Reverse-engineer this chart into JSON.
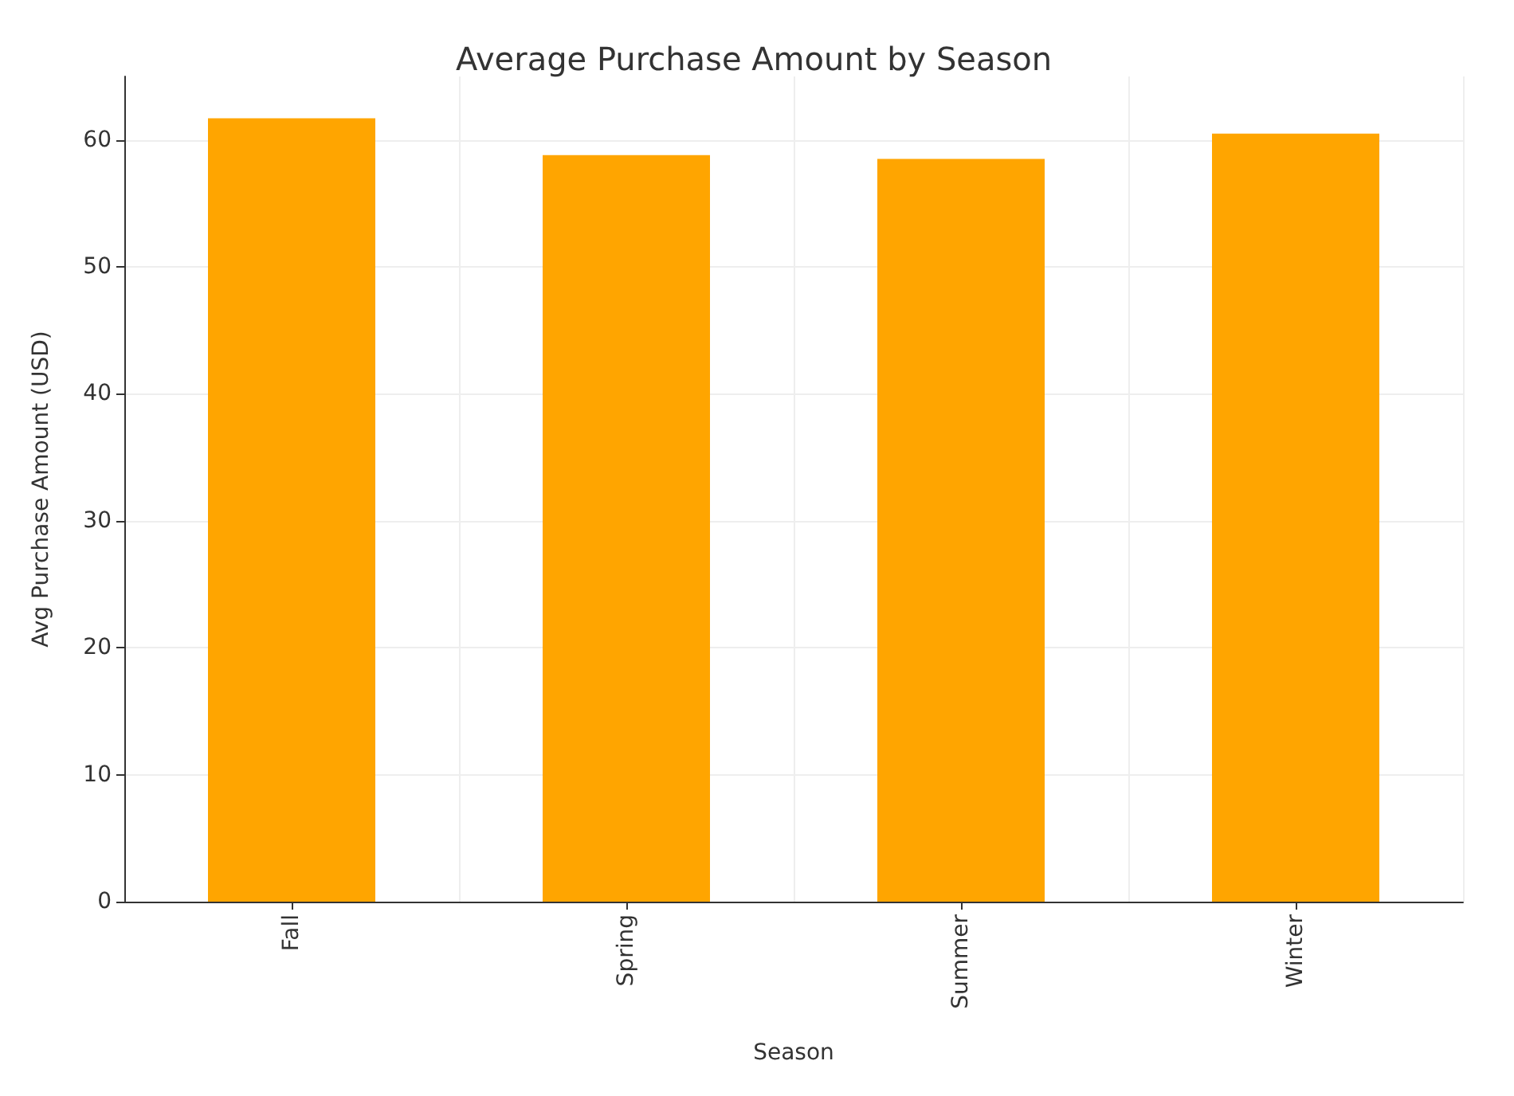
{
  "chart_data": {
    "type": "bar",
    "title": "Average Purchase Amount by Season",
    "xlabel": "Season",
    "ylabel": "Avg Purchase Amount (USD)",
    "categories": [
      "Fall",
      "Spring",
      "Summer",
      "Winter"
    ],
    "values": [
      61.7,
      58.8,
      58.5,
      60.5
    ],
    "color": "#ffa500",
    "ylim": [
      0,
      65
    ],
    "yticks": [
      0,
      10,
      20,
      30,
      40,
      50,
      60
    ],
    "grid": true
  }
}
